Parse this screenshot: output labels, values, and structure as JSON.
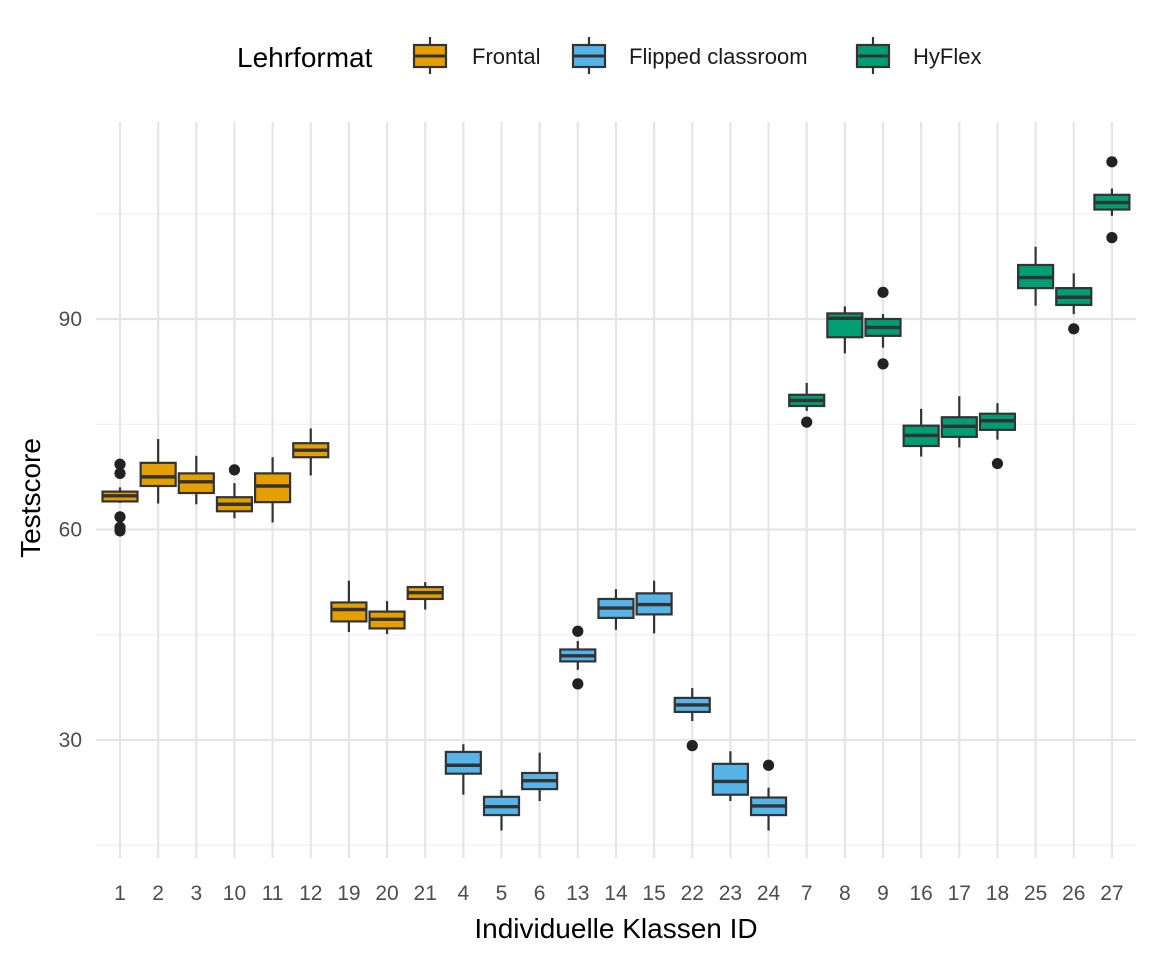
{
  "chart_data": {
    "type": "boxplot",
    "title": "",
    "xlabel": "Individuelle Klassen ID",
    "ylabel": "Testscore",
    "y_ticks": [
      30,
      60,
      90
    ],
    "ylim": [
      12.5,
      113.5
    ],
    "grid": true,
    "legend": {
      "title": "Lehrformat",
      "placement": "top",
      "entries": [
        {
          "name": "Frontal",
          "color": "#E69F00"
        },
        {
          "name": "Flipped classroom",
          "color": "#56B4E9"
        },
        {
          "name": "HyFlex",
          "color": "#009E73"
        }
      ]
    },
    "categories": [
      "1",
      "2",
      "3",
      "10",
      "11",
      "12",
      "19",
      "20",
      "21",
      "4",
      "5",
      "6",
      "13",
      "14",
      "15",
      "22",
      "23",
      "24",
      "7",
      "8",
      "9",
      "16",
      "17",
      "18",
      "25",
      "26",
      "27"
    ],
    "boxes": [
      {
        "id": "1",
        "group": "Frontal",
        "whisker_low": 63.8,
        "q1": 64.0,
        "median": 64.8,
        "q3": 65.4,
        "whisker_high": 66.0,
        "outliers": [
          69.3,
          68.0,
          61.8,
          60.3,
          59.8
        ]
      },
      {
        "id": "2",
        "group": "Frontal",
        "whisker_low": 63.7,
        "q1": 66.2,
        "median": 67.5,
        "q3": 69.5,
        "whisker_high": 72.9,
        "outliers": []
      },
      {
        "id": "3",
        "group": "Frontal",
        "whisker_low": 63.6,
        "q1": 65.2,
        "median": 66.8,
        "q3": 68.0,
        "whisker_high": 70.5,
        "outliers": []
      },
      {
        "id": "10",
        "group": "Frontal",
        "whisker_low": 61.6,
        "q1": 62.6,
        "median": 63.6,
        "q3": 64.6,
        "whisker_high": 66.6,
        "outliers": [
          68.5
        ]
      },
      {
        "id": "11",
        "group": "Frontal",
        "whisker_low": 61.0,
        "q1": 63.9,
        "median": 66.2,
        "q3": 68.0,
        "whisker_high": 70.3,
        "outliers": []
      },
      {
        "id": "12",
        "group": "Frontal",
        "whisker_low": 67.7,
        "q1": 70.3,
        "median": 71.3,
        "q3": 72.3,
        "whisker_high": 74.4,
        "outliers": []
      },
      {
        "id": "19",
        "group": "Frontal",
        "whisker_low": 45.4,
        "q1": 46.9,
        "median": 48.6,
        "q3": 49.6,
        "whisker_high": 52.7,
        "outliers": []
      },
      {
        "id": "20",
        "group": "Frontal",
        "whisker_low": 45.1,
        "q1": 45.9,
        "median": 47.2,
        "q3": 48.3,
        "whisker_high": 49.8,
        "outliers": []
      },
      {
        "id": "21",
        "group": "Frontal",
        "whisker_low": 48.6,
        "q1": 50.1,
        "median": 51.0,
        "q3": 51.8,
        "whisker_high": 52.5,
        "outliers": []
      },
      {
        "id": "4",
        "group": "Flipped classroom",
        "whisker_low": 22.2,
        "q1": 25.2,
        "median": 26.4,
        "q3": 28.3,
        "whisker_high": 29.4,
        "outliers": []
      },
      {
        "id": "5",
        "group": "Flipped classroom",
        "whisker_low": 17.1,
        "q1": 19.3,
        "median": 20.5,
        "q3": 21.9,
        "whisker_high": 22.9,
        "outliers": []
      },
      {
        "id": "6",
        "group": "Flipped classroom",
        "whisker_low": 21.3,
        "q1": 23.0,
        "median": 24.2,
        "q3": 25.3,
        "whisker_high": 28.2,
        "outliers": []
      },
      {
        "id": "13",
        "group": "Flipped classroom",
        "whisker_low": 40.0,
        "q1": 41.2,
        "median": 42.0,
        "q3": 42.9,
        "whisker_high": 44.1,
        "outliers": [
          45.5,
          38.0
        ]
      },
      {
        "id": "14",
        "group": "Flipped classroom",
        "whisker_low": 45.7,
        "q1": 47.4,
        "median": 48.8,
        "q3": 50.1,
        "whisker_high": 51.5,
        "outliers": []
      },
      {
        "id": "15",
        "group": "Flipped classroom",
        "whisker_low": 45.2,
        "q1": 47.9,
        "median": 49.3,
        "q3": 50.9,
        "whisker_high": 52.7,
        "outliers": []
      },
      {
        "id": "22",
        "group": "Flipped classroom",
        "whisker_low": 32.7,
        "q1": 34.0,
        "median": 35.0,
        "q3": 36.0,
        "whisker_high": 37.4,
        "outliers": [
          29.2
        ]
      },
      {
        "id": "23",
        "group": "Flipped classroom",
        "whisker_low": 21.3,
        "q1": 22.2,
        "median": 24.1,
        "q3": 26.6,
        "whisker_high": 28.4,
        "outliers": []
      },
      {
        "id": "24",
        "group": "Flipped classroom",
        "whisker_low": 17.1,
        "q1": 19.3,
        "median": 20.6,
        "q3": 21.8,
        "whisker_high": 23.2,
        "outliers": [
          26.4
        ]
      },
      {
        "id": "7",
        "group": "HyFlex",
        "whisker_low": 76.9,
        "q1": 77.6,
        "median": 78.4,
        "q3": 79.2,
        "whisker_high": 80.9,
        "outliers": [
          75.3
        ]
      },
      {
        "id": "8",
        "group": "HyFlex",
        "whisker_low": 85.1,
        "q1": 87.4,
        "median": 90.1,
        "q3": 90.8,
        "whisker_high": 91.8,
        "outliers": []
      },
      {
        "id": "9",
        "group": "HyFlex",
        "whisker_low": 85.9,
        "q1": 87.6,
        "median": 88.8,
        "q3": 90.0,
        "whisker_high": 90.7,
        "outliers": [
          93.8,
          83.6
        ]
      },
      {
        "id": "16",
        "group": "HyFlex",
        "whisker_low": 70.4,
        "q1": 71.9,
        "median": 73.4,
        "q3": 74.8,
        "whisker_high": 77.2,
        "outliers": []
      },
      {
        "id": "17",
        "group": "HyFlex",
        "whisker_low": 71.7,
        "q1": 73.2,
        "median": 74.7,
        "q3": 76.0,
        "whisker_high": 79.0,
        "outliers": []
      },
      {
        "id": "18",
        "group": "HyFlex",
        "whisker_low": 72.8,
        "q1": 74.2,
        "median": 75.5,
        "q3": 76.5,
        "whisker_high": 78.0,
        "outliers": [
          69.4
        ]
      },
      {
        "id": "25",
        "group": "HyFlex",
        "whisker_low": 91.9,
        "q1": 94.4,
        "median": 95.9,
        "q3": 97.7,
        "whisker_high": 100.3,
        "outliers": []
      },
      {
        "id": "26",
        "group": "HyFlex",
        "whisker_low": 90.7,
        "q1": 92.0,
        "median": 93.1,
        "q3": 94.4,
        "whisker_high": 96.5,
        "outliers": [
          88.6
        ]
      },
      {
        "id": "27",
        "group": "HyFlex",
        "whisker_low": 104.7,
        "q1": 105.6,
        "median": 106.6,
        "q3": 107.7,
        "whisker_high": 108.6,
        "outliers": [
          112.4,
          101.6
        ]
      }
    ]
  }
}
